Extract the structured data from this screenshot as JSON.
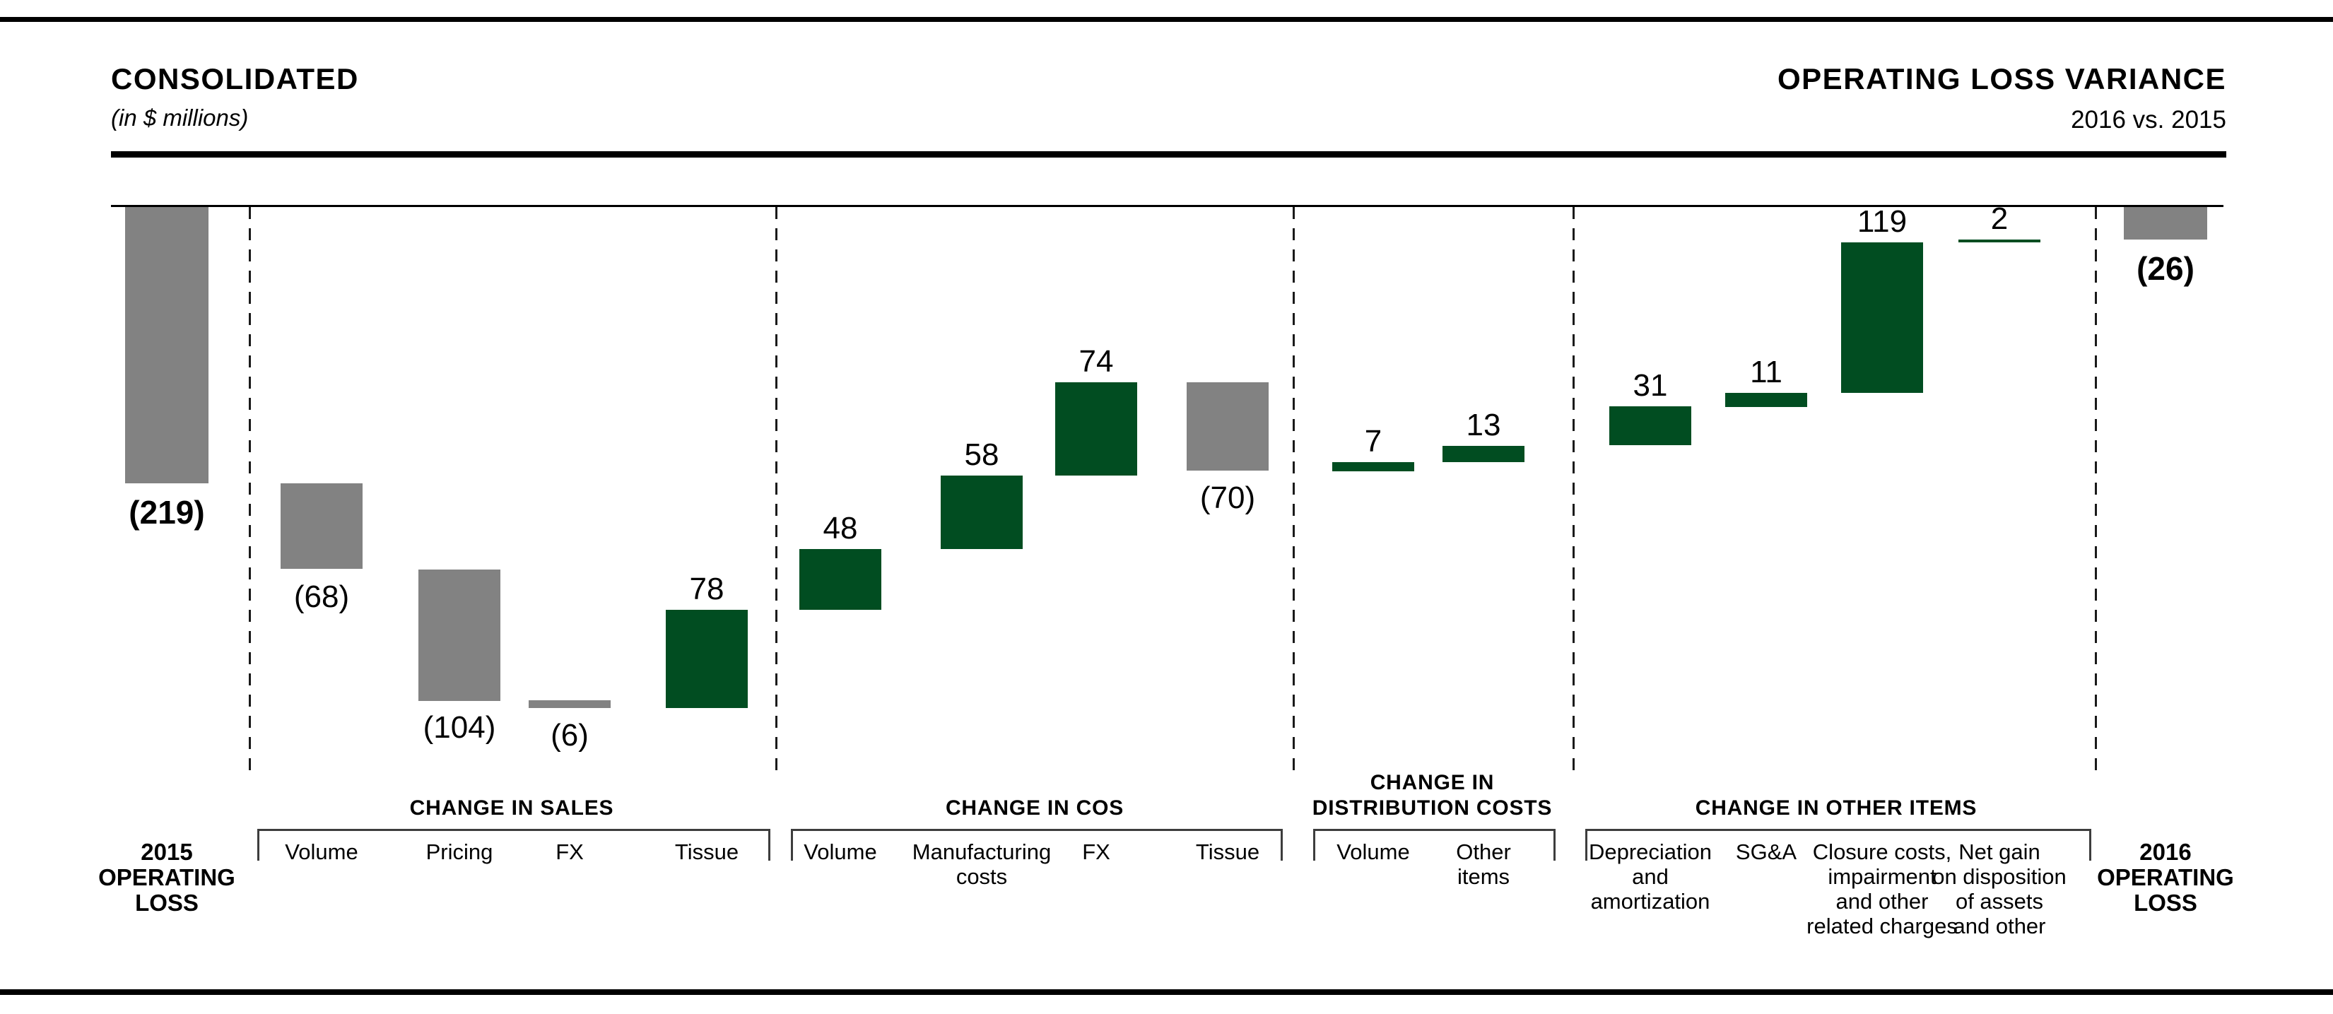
{
  "header": {
    "title_left": "CONSOLIDATED",
    "subtitle_left": "(in $ millions)",
    "title_right": "OPERATING LOSS VARIANCE",
    "subtitle_right": "2016 vs. 2015"
  },
  "colors": {
    "decrease_bar": "#828282",
    "increase_bar": "#014d21",
    "line": "#000000",
    "bracket": "#3d3d3d"
  },
  "chart_data": {
    "type": "waterfall",
    "title": "Consolidated Operating Loss Variance, 2016 vs. 2015",
    "unit": "$ millions",
    "ylim": [
      -400,
      0
    ],
    "grid": false,
    "bars": [
      {
        "id": "operating-loss-2015",
        "label": "2015\nOPERATING\nLOSS",
        "value": -219,
        "display": "(219)",
        "kind": "total"
      },
      {
        "id": "sales-volume",
        "label": "Volume",
        "value": -68,
        "display": "(68)",
        "kind": "delta"
      },
      {
        "id": "sales-pricing",
        "label": "Pricing",
        "value": -104,
        "display": "(104)",
        "kind": "delta"
      },
      {
        "id": "sales-fx",
        "label": "FX",
        "value": -6,
        "display": "(6)",
        "kind": "delta"
      },
      {
        "id": "sales-tissue",
        "label": "Tissue",
        "value": 78,
        "display": "78",
        "kind": "delta"
      },
      {
        "id": "cos-volume",
        "label": "Volume",
        "value": 48,
        "display": "48",
        "kind": "delta"
      },
      {
        "id": "cos-manufacturing",
        "label": "Manufacturing\ncosts",
        "value": 58,
        "display": "58",
        "kind": "delta"
      },
      {
        "id": "cos-fx",
        "label": "FX",
        "value": 74,
        "display": "74",
        "kind": "delta"
      },
      {
        "id": "cos-tissue",
        "label": "Tissue",
        "value": -70,
        "display": "(70)",
        "kind": "delta"
      },
      {
        "id": "dist-volume",
        "label": "Volume",
        "value": 7,
        "display": "7",
        "kind": "delta"
      },
      {
        "id": "dist-other-items",
        "label": "Other\nitems",
        "value": 13,
        "display": "13",
        "kind": "delta"
      },
      {
        "id": "other-depreciation",
        "label": "Depreciation\nand\namortization",
        "value": 31,
        "display": "31",
        "kind": "delta"
      },
      {
        "id": "other-sga",
        "label": "SG&A",
        "value": 11,
        "display": "11",
        "kind": "delta"
      },
      {
        "id": "other-closure-costs",
        "label": "Closure costs,\nimpairment\nand other\nrelated charges",
        "value": 119,
        "display": "119",
        "kind": "delta"
      },
      {
        "id": "other-net-gain",
        "label": "Net gain\non disposition\nof assets\nand other",
        "value": 2,
        "display": "2",
        "kind": "delta"
      },
      {
        "id": "operating-loss-2016",
        "label": "2016\nOPERATING\nLOSS",
        "value": -26,
        "display": "(26)",
        "kind": "total"
      }
    ],
    "groups": [
      {
        "header": "CHANGE IN SALES",
        "bar_ids": [
          "sales-volume",
          "sales-pricing",
          "sales-fx",
          "sales-tissue"
        ]
      },
      {
        "header": "CHANGE IN COS",
        "bar_ids": [
          "cos-volume",
          "cos-manufacturing",
          "cos-fx",
          "cos-tissue"
        ]
      },
      {
        "header": "CHANGE IN\nDISTRIBUTION COSTS",
        "bar_ids": [
          "dist-volume",
          "dist-other-items"
        ]
      },
      {
        "header": "CHANGE IN OTHER ITEMS",
        "bar_ids": [
          "other-depreciation",
          "other-sga",
          "other-closure-costs",
          "other-net-gain"
        ]
      }
    ]
  }
}
